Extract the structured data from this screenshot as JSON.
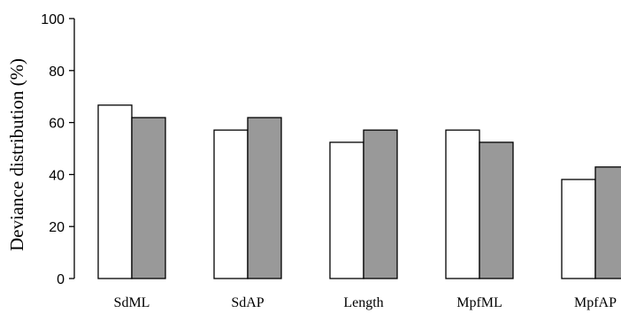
{
  "chart_data": {
    "type": "bar",
    "categories": [
      "SdML",
      "SdAP",
      "Length",
      "MpfML",
      "MpfAP"
    ],
    "series": [
      {
        "values": [
          66.7,
          57.1,
          52.4,
          57.1,
          38.1
        ],
        "color": "#ffffff"
      },
      {
        "values": [
          61.9,
          61.9,
          57.1,
          52.4,
          42.9
        ],
        "color": "#999999"
      }
    ],
    "ylabel": "Deviance distribution (%)",
    "xlabel": "",
    "ylim": [
      0,
      100
    ],
    "yticks": [
      0,
      20,
      40,
      60,
      80,
      100
    ],
    "grid": false
  }
}
